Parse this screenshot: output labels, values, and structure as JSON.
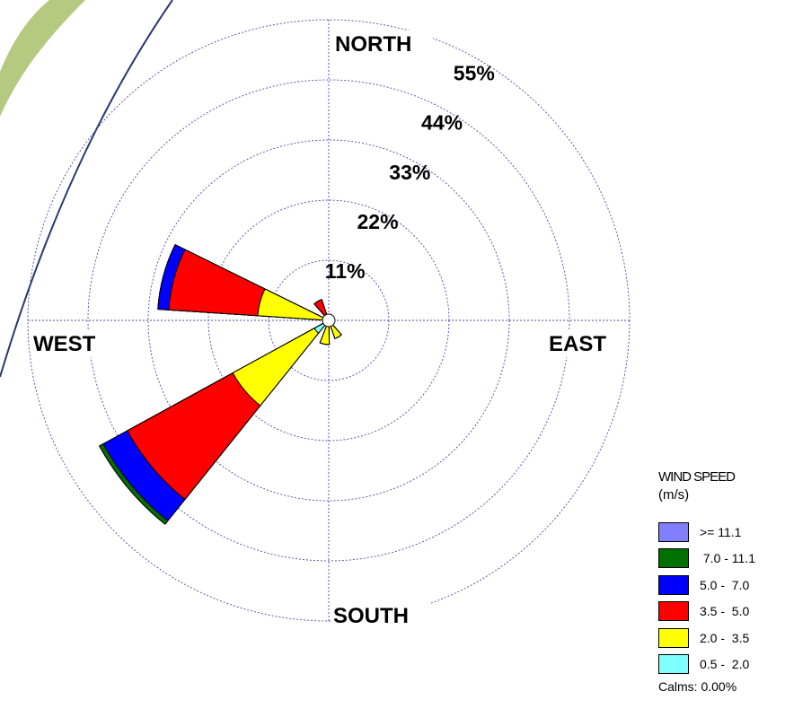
{
  "chart_data": {
    "type": "windrose",
    "direction_labels": {
      "north": "NORTH",
      "south": "SOUTH",
      "east": "EAST",
      "west": "WEST"
    },
    "ring_labels": [
      "11%",
      "22%",
      "33%",
      "44%",
      "55%"
    ],
    "ring_values": [
      11,
      22,
      33,
      44,
      55
    ],
    "grid": true,
    "legend_position": "bottom-right",
    "legend": {
      "title": "WIND SPEED",
      "unit": "(m/s)",
      "bins": [
        {
          "label": ">= 11.1",
          "color": "#8080ff"
        },
        {
          "label": " 7.0 - 11.1",
          "color": "#007000"
        },
        {
          "label": "5.0 -  7.0",
          "color": "#0000ff"
        },
        {
          "label": "3.5 -  5.0",
          "color": "#ff0000"
        },
        {
          "label": "2.0 -  3.5",
          "color": "#ffff00"
        },
        {
          "label": "0.5 -  2.0",
          "color": "#80ffff"
        }
      ],
      "calms": "Calms: 0.00%"
    },
    "sectors": [
      {
        "direction_deg": 330,
        "cumulative_percent": {
          "0.5-2.0": 0.4,
          "2.0-3.5": 1.0,
          "3.5-5.0": 4.0,
          "5.0-7.0": 4.0,
          "7.0-11.1": 4.0,
          ">=11.1": 4.0
        }
      },
      {
        "direction_deg": 285,
        "cumulative_percent": {
          "0.5-2.0": 0.8,
          "2.0-3.5": 13.0,
          "3.5-5.0": 29.3,
          "5.0-7.0": 31.3,
          "7.0-11.1": 31.3,
          ">=11.1": 31.3
        }
      },
      {
        "direction_deg": 230,
        "cumulative_percent": {
          "0.5-2.0": 3.0,
          "2.0-3.5": 20.0,
          "3.5-5.0": 42.0,
          "5.0-7.0": 47.0,
          "7.0-11.1": 47.8,
          ">=11.1": 47.8
        }
      },
      {
        "direction_deg": 190,
        "cumulative_percent": {
          "0.5-2.0": 0.5,
          "2.0-3.5": 4.4,
          "3.5-5.0": 4.4,
          "5.0-7.0": 4.4,
          "7.0-11.1": 4.4,
          ">=11.1": 4.4
        }
      },
      {
        "direction_deg": 150,
        "cumulative_percent": {
          "0.5-2.0": 0.5,
          "2.0-3.5": 3.5,
          "3.5-5.0": 3.5,
          "5.0-7.0": 3.5,
          "7.0-11.1": 3.5,
          ">=11.1": 3.5
        }
      }
    ]
  }
}
